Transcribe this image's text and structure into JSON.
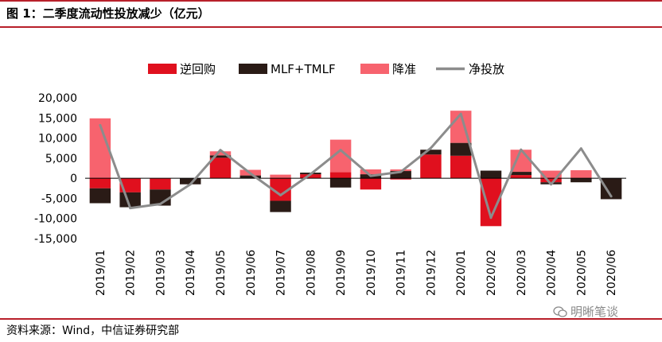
{
  "figure": {
    "title": "图 1：二季度流动性投放减少（亿元）",
    "source": "资料来源：Wind，中信证券研究部",
    "watermark": "明晰笔谈"
  },
  "colors": {
    "reverse_repo": "#e0101e",
    "mlf_tmlf": "#2a1b16",
    "rrr_cut": "#f7636e",
    "net_injection": "#8c8c8c",
    "rule": "#b8202a"
  },
  "chart_data": {
    "type": "bar",
    "stacked": true,
    "categories": [
      "2019/01",
      "2019/02",
      "2019/03",
      "2019/04",
      "2019/05",
      "2019/06",
      "2019/07",
      "2019/08",
      "2019/09",
      "2019/10",
      "2019/11",
      "2019/12",
      "2020/01",
      "2020/02",
      "2020/03",
      "2020/04",
      "2020/05",
      "2020/06"
    ],
    "ylim": [
      -15000,
      20000
    ],
    "yticks": [
      -15000,
      -10000,
      -5000,
      0,
      5000,
      10000,
      15000,
      20000
    ],
    "ytick_labels": [
      "-15,000",
      "-10,000",
      "-5,000",
      "0",
      "5,000",
      "10,000",
      "15,000",
      "20,000"
    ],
    "legend_position": "top",
    "series": [
      {
        "name": "逆回购",
        "kind": "bar",
        "values": [
          -2500,
          -3500,
          -2800,
          0,
          5100,
          0,
          -5600,
          1000,
          1500,
          -2800,
          -300,
          5900,
          5600,
          -11900,
          800,
          -1000,
          0,
          0
        ]
      },
      {
        "name": "MLF+TMLF",
        "kind": "bar",
        "values": [
          -3700,
          -3700,
          -4000,
          -1500,
          600,
          700,
          -2800,
          400,
          -2300,
          1000,
          1800,
          1200,
          3200,
          1900,
          800,
          -500,
          -1000,
          -5200
        ]
      },
      {
        "name": "降准",
        "kind": "bar",
        "values": [
          14900,
          0,
          0,
          0,
          1000,
          1400,
          900,
          0,
          8100,
          1200,
          400,
          0,
          8000,
          0,
          5500,
          1900,
          2000,
          0
        ]
      },
      {
        "name": "净投放",
        "kind": "line",
        "values": [
          13200,
          -7400,
          -6400,
          -1500,
          7000,
          1200,
          -4200,
          1000,
          7000,
          600,
          1600,
          7500,
          16000,
          -9800,
          7100,
          -1500,
          7400,
          -4500
        ]
      }
    ]
  }
}
